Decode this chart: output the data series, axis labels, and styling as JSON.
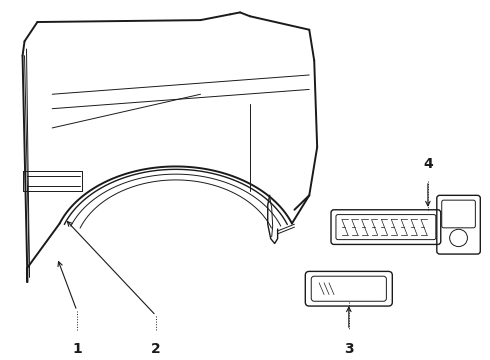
{
  "bg_color": "#ffffff",
  "line_color": "#1a1a1a",
  "figsize": [
    4.9,
    3.6
  ],
  "dpi": 100,
  "lw_main": 1.4,
  "lw_thin": 0.7,
  "lw_med": 1.0
}
